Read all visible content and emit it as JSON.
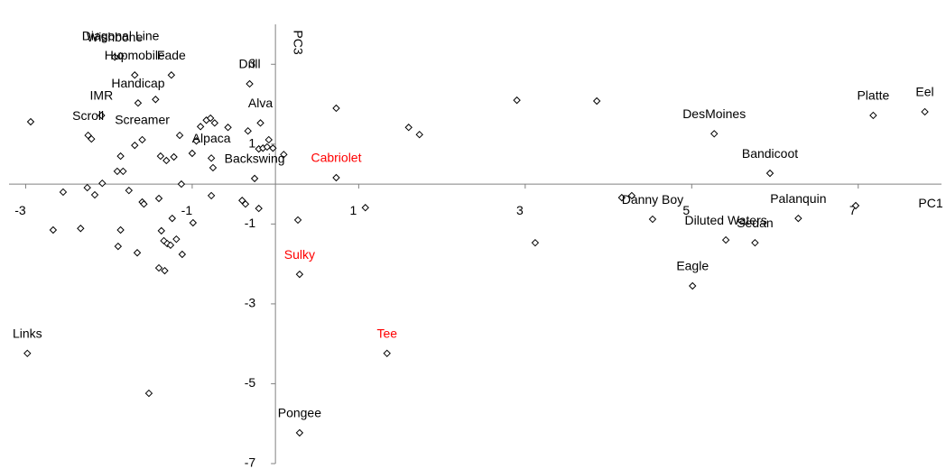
{
  "chart_data": {
    "type": "scatter",
    "x_label": "PC1",
    "y_label": "PC3",
    "xlim": [
      -3.2,
      8
    ],
    "ylim": [
      -7,
      4
    ],
    "xticks": [
      -3,
      -1,
      1,
      3,
      5,
      7
    ],
    "yticks": [
      3,
      1,
      -1,
      -3,
      -5,
      -7
    ],
    "marker_color": "#000000",
    "grid": false,
    "points": [
      {
        "x": -1.86,
        "y": 3.21,
        "label": "Diagonal Line",
        "label_color": "#000000"
      },
      {
        "x": -1.93,
        "y": 3.18,
        "label": "Wishbone",
        "label_color": "#000000"
      },
      {
        "x": -1.69,
        "y": 2.73,
        "label": "Hupmobile",
        "label_color": "#000000"
      },
      {
        "x": -1.25,
        "y": 2.73,
        "label": "Fade",
        "label_color": "#000000"
      },
      {
        "x": -1.65,
        "y": 2.03,
        "label": "Handicap",
        "label_color": "#000000"
      },
      {
        "x": -2.09,
        "y": 1.72,
        "label": "IMR",
        "label_color": "#000000"
      },
      {
        "x": -2.25,
        "y": 1.22,
        "label": "Scroll",
        "label_color": "#000000"
      },
      {
        "x": -1.6,
        "y": 1.11,
        "label": "Screamer",
        "label_color": "#000000"
      },
      {
        "x": -0.31,
        "y": 2.51,
        "label": "Drill",
        "label_color": "#000000"
      },
      {
        "x": -0.18,
        "y": 1.53,
        "label": "Alva",
        "label_color": "#000000"
      },
      {
        "x": -0.77,
        "y": 0.65,
        "label": "Alpaca",
        "label_color": "#000000"
      },
      {
        "x": -0.25,
        "y": 0.14,
        "label": "Backswing",
        "label_color": "#000000"
      },
      {
        "x": 0.73,
        "y": 0.16,
        "label": "Cabriolet",
        "label_color": "#ff0000"
      },
      {
        "x": 0.29,
        "y": -2.26,
        "label": "Sulky",
        "label_color": "#ff0000"
      },
      {
        "x": 1.34,
        "y": -4.24,
        "label": "Tee",
        "label_color": "#ff0000"
      },
      {
        "x": 0.29,
        "y": -6.23,
        "label": "Pongee",
        "label_color": "#000000"
      },
      {
        "x": -2.98,
        "y": -4.24,
        "label": "Links",
        "label_color": "#000000"
      },
      {
        "x": 4.53,
        "y": -0.88,
        "label": "Danny Boy",
        "label_color": "#000000"
      },
      {
        "x": 5.41,
        "y": -1.4,
        "label": "Diluted Waters",
        "label_color": "#000000"
      },
      {
        "x": 5.76,
        "y": -1.47,
        "label": "Sedan",
        "label_color": "#000000"
      },
      {
        "x": 5.01,
        "y": -2.55,
        "label": "Eagle",
        "label_color": "#000000"
      },
      {
        "x": 6.28,
        "y": -0.86,
        "label": "Palanquin",
        "label_color": "#000000"
      },
      {
        "x": 5.94,
        "y": 0.27,
        "label": "Bandicoot",
        "label_color": "#000000"
      },
      {
        "x": 5.27,
        "y": 1.26,
        "label": "DesMoines",
        "label_color": "#000000"
      },
      {
        "x": 7.18,
        "y": 1.72,
        "label": "Platte",
        "label_color": "#000000"
      },
      {
        "x": 7.8,
        "y": 1.81,
        "label": "Eel",
        "label_color": "#000000"
      },
      {
        "x": 2.9,
        "y": 2.1
      },
      {
        "x": 3.86,
        "y": 2.08
      },
      {
        "x": 0.73,
        "y": 1.9
      },
      {
        "x": 1.6,
        "y": 1.42
      },
      {
        "x": 1.73,
        "y": 1.24
      },
      {
        "x": 4.16,
        "y": -0.34
      },
      {
        "x": 4.28,
        "y": -0.29
      },
      {
        "x": 6.97,
        "y": -0.54
      },
      {
        "x": 1.08,
        "y": -0.59
      },
      {
        "x": 3.12,
        "y": -1.47
      },
      {
        "x": 0.27,
        "y": -0.9
      },
      {
        "x": -1.52,
        "y": -5.24
      },
      {
        "x": -1.44,
        "y": 2.12
      },
      {
        "x": -2.94,
        "y": 1.56
      },
      {
        "x": -2.21,
        "y": 1.13
      },
      {
        "x": -1.86,
        "y": 0.7
      },
      {
        "x": -1.9,
        "y": 0.32
      },
      {
        "x": -1.83,
        "y": 0.32
      },
      {
        "x": -1.69,
        "y": 0.97
      },
      {
        "x": -1.38,
        "y": 0.7
      },
      {
        "x": -1.31,
        "y": 0.59
      },
      {
        "x": -1.22,
        "y": 0.68
      },
      {
        "x": -1.15,
        "y": 1.22
      },
      {
        "x": -1.0,
        "y": 0.77
      },
      {
        "x": -0.95,
        "y": 1.08
      },
      {
        "x": -0.9,
        "y": 1.44
      },
      {
        "x": -0.83,
        "y": 1.6
      },
      {
        "x": -0.78,
        "y": 1.65
      },
      {
        "x": -0.73,
        "y": 1.53
      },
      {
        "x": -0.57,
        "y": 1.42
      },
      {
        "x": -0.33,
        "y": 1.33
      },
      {
        "x": -0.2,
        "y": 0.88
      },
      {
        "x": -0.15,
        "y": 0.9
      },
      {
        "x": -0.08,
        "y": 1.11
      },
      {
        "x": -0.03,
        "y": 0.9
      },
      {
        "x": -0.1,
        "y": 0.93
      },
      {
        "x": 0.1,
        "y": 0.74
      },
      {
        "x": -0.75,
        "y": 0.41
      },
      {
        "x": -1.13,
        "y": 0.0
      },
      {
        "x": -2.08,
        "y": 0.02
      },
      {
        "x": -2.26,
        "y": -0.09
      },
      {
        "x": -2.17,
        "y": -0.27
      },
      {
        "x": -2.55,
        "y": -0.2
      },
      {
        "x": -1.76,
        "y": -0.16
      },
      {
        "x": -1.6,
        "y": -0.45
      },
      {
        "x": -1.58,
        "y": -0.5
      },
      {
        "x": -1.4,
        "y": -0.36
      },
      {
        "x": -1.24,
        "y": -0.86
      },
      {
        "x": -0.99,
        "y": -0.97
      },
      {
        "x": -0.77,
        "y": -0.29
      },
      {
        "x": -0.4,
        "y": -0.41
      },
      {
        "x": -0.36,
        "y": -0.5
      },
      {
        "x": -0.2,
        "y": -0.61
      },
      {
        "x": -2.67,
        "y": -1.15
      },
      {
        "x": -2.34,
        "y": -1.11
      },
      {
        "x": -1.86,
        "y": -1.15
      },
      {
        "x": -1.37,
        "y": -1.17
      },
      {
        "x": -1.89,
        "y": -1.56
      },
      {
        "x": -1.66,
        "y": -1.72
      },
      {
        "x": -1.34,
        "y": -1.42
      },
      {
        "x": -1.3,
        "y": -1.49
      },
      {
        "x": -1.26,
        "y": -1.53
      },
      {
        "x": -1.19,
        "y": -1.38
      },
      {
        "x": -1.12,
        "y": -1.76
      },
      {
        "x": -1.4,
        "y": -2.1
      },
      {
        "x": -1.33,
        "y": -2.17
      }
    ]
  }
}
